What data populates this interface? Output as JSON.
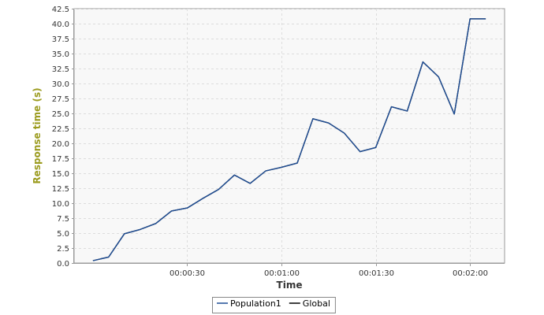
{
  "chart_data": {
    "type": "line",
    "xlabel": "Time",
    "ylabel": "Response time (s)",
    "x_tick_labels": [
      "00:00:30",
      "00:01:00",
      "00:01:30",
      "00:02:00"
    ],
    "x_tick_values": [
      30,
      60,
      90,
      120
    ],
    "xlim": [
      -6,
      131
    ],
    "y_ticks": [
      0.0,
      2.5,
      5.0,
      7.5,
      10.0,
      12.5,
      15.0,
      17.5,
      20.0,
      22.5,
      25.0,
      27.5,
      30.0,
      32.5,
      35.0,
      37.5,
      40.0,
      42.5
    ],
    "y_tick_labels": [
      "0.0",
      "2.5",
      "5.0",
      "7.5",
      "10.0",
      "12.5",
      "15.0",
      "17.5",
      "20.0",
      "22.5",
      "25.0",
      "27.5",
      "30.0",
      "32.5",
      "35.0",
      "37.5",
      "40.0",
      "42.5"
    ],
    "ylim": [
      0,
      42.5
    ],
    "grid": true,
    "legend_position": "bottom",
    "series": [
      {
        "name": "Population1",
        "color": "#1f4e96",
        "x": [
          0,
          5,
          10,
          15,
          20,
          25,
          30,
          35,
          40,
          45,
          50,
          55,
          60,
          65,
          70,
          75,
          80,
          85,
          90,
          95,
          100,
          105,
          110,
          115,
          120,
          125
        ],
        "y": [
          0.4,
          1.0,
          4.9,
          5.6,
          6.6,
          8.7,
          9.2,
          10.8,
          12.3,
          14.7,
          13.3,
          15.4,
          16.0,
          16.7,
          24.1,
          23.4,
          21.7,
          18.6,
          19.3,
          26.1,
          25.4,
          33.6,
          31.1,
          24.9,
          40.8,
          40.8
        ]
      },
      {
        "name": "Global",
        "color": "#000000",
        "x": [
          0,
          5,
          10,
          15,
          20,
          25,
          30,
          35,
          40,
          45,
          50,
          55,
          60,
          65,
          70,
          75,
          80,
          85,
          90,
          95,
          100,
          105,
          110,
          115,
          120,
          125
        ],
        "y": [
          0.4,
          1.0,
          4.9,
          5.6,
          6.6,
          8.7,
          9.2,
          10.8,
          12.3,
          14.7,
          13.3,
          15.4,
          16.0,
          16.7,
          24.1,
          23.4,
          21.7,
          18.6,
          19.3,
          26.1,
          25.4,
          33.6,
          31.1,
          24.9,
          40.8,
          40.8
        ]
      }
    ],
    "colors": {
      "plot_background": "#f8f8f8",
      "grid": "#dddddd",
      "axis_title_y": "#9b9b1e",
      "axis_title_x": "#333333"
    }
  }
}
